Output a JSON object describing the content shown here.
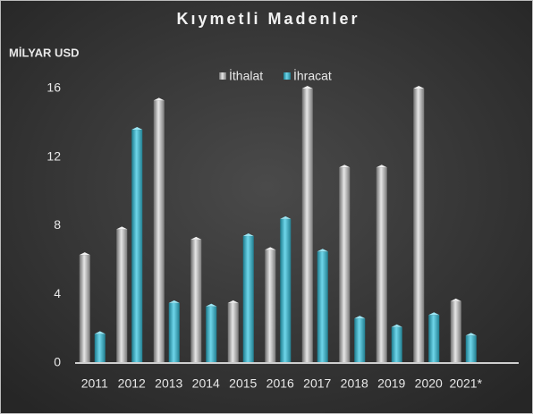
{
  "chart_data": {
    "type": "bar",
    "title": "Kıymetli Madenler",
    "y_axis_label": "MİLYAR USD",
    "categories": [
      "2011",
      "2012",
      "2013",
      "2014",
      "2015",
      "2016",
      "2017",
      "2018",
      "2019",
      "2020",
      "2021*"
    ],
    "series": [
      {
        "name": "İthalat",
        "color": "#a6a6a6",
        "values": [
          6.3,
          7.8,
          15.3,
          7.2,
          3.5,
          6.6,
          16,
          11.4,
          11.4,
          16,
          3.6
        ]
      },
      {
        "name": "İhracat",
        "color": "#3fb6cc",
        "values": [
          1.7,
          13.6,
          3.5,
          3.3,
          7.4,
          8.4,
          6.5,
          2.6,
          2.1,
          2.8,
          1.6
        ]
      }
    ],
    "ylim": [
      0,
      16
    ],
    "yticks": [
      0,
      4,
      8,
      12,
      16
    ],
    "grid": false,
    "legend": "top"
  }
}
